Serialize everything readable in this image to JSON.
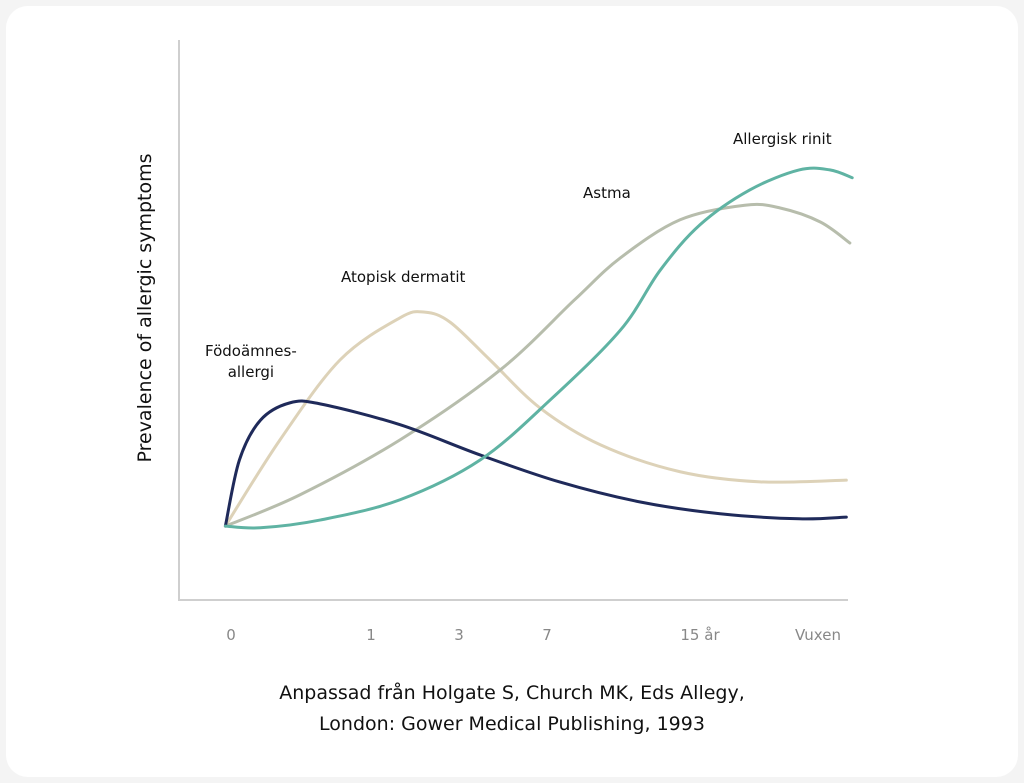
{
  "chart_data": {
    "type": "line",
    "title": "",
    "xlabel": "",
    "ylabel": "Prevalence of allergic symptoms",
    "x_tick_labels": [
      "0",
      "1",
      "3",
      "7",
      "15 år",
      "Vuxen"
    ],
    "x_units": "position along age axis (0 = tick '0' … 5 = tick 'Vuxen')",
    "ylim": [
      0,
      100
    ],
    "grid": false,
    "legend": "inline labels",
    "series": [
      {
        "name": "Födoämnes-allergi",
        "label_lines": [
          "Födoämnes-",
          "allergi"
        ],
        "color": "#1f2a5a",
        "x": [
          -0.04,
          0.06,
          0.21,
          0.42,
          0.64,
          1.33,
          2.24,
          3.08,
          3.61,
          4.17,
          4.84,
          5.24
        ],
        "y": [
          13.2,
          25,
          32.1,
          35.2,
          35,
          31.3,
          25.9,
          21.1,
          17.5,
          15.4,
          14.5,
          14.8
        ]
      },
      {
        "name": "Atopisk dermatit",
        "color": "#ddd2b8",
        "x": [
          -0.04,
          0.35,
          0.78,
          1.33,
          1.61,
          1.9,
          2.35,
          2.92,
          3.35,
          3.87,
          4.51,
          5.24
        ],
        "y": [
          13.2,
          28.6,
          42.9,
          50.4,
          51.4,
          49.6,
          42.9,
          34.3,
          27.7,
          22.9,
          21.1,
          21.4
        ]
      },
      {
        "name": "Astma",
        "color": "#b7bdac",
        "x": [
          -0.04,
          0.49,
          1.33,
          2.47,
          3.18,
          3.48,
          3.87,
          4.38,
          4.68,
          5.02,
          5.27
        ],
        "y": [
          13.2,
          18.75,
          28.6,
          41.1,
          53.6,
          61.1,
          67.9,
          70.5,
          70,
          67.5,
          63.75
        ]
      },
      {
        "name": "Allergisk rinit",
        "color": "#5fb3a3",
        "x": [
          -0.04,
          0.21,
          0.64,
          1.33,
          2.24,
          3.02,
          3.48,
          3.74,
          4.0,
          4.42,
          4.84,
          5.1,
          5.29
        ],
        "y": [
          13.2,
          12.9,
          14.3,
          17.9,
          25,
          35.7,
          48.2,
          58.9,
          67,
          73.2,
          76.8,
          76.8,
          75.4
        ]
      }
    ]
  },
  "source": {
    "line1": "Anpassad från Holgate S, Church MK, Eds Allegy,",
    "line2": "London: Gower Medical Publishing, 1993"
  }
}
